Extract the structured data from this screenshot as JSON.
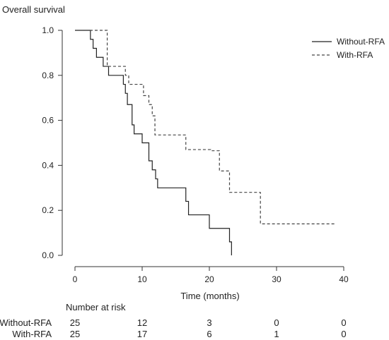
{
  "chart_data": {
    "type": "line",
    "subtype": "kaplan-meier",
    "title": "Overall survival",
    "xlabel": "Time (months)",
    "ylabel": "",
    "xlim": [
      0,
      40
    ],
    "ylim": [
      0,
      1
    ],
    "x_ticks": [
      0,
      10,
      20,
      30,
      40
    ],
    "y_ticks": [
      0.0,
      0.2,
      0.4,
      0.6,
      0.8,
      1.0
    ],
    "x_tick_labels": [
      "0",
      "10",
      "20",
      "30",
      "40"
    ],
    "y_tick_labels": [
      "0.0",
      "0.2",
      "0.4",
      "0.6",
      "0.8",
      "1.0"
    ],
    "grid": false,
    "legend_position": "top-right",
    "series": [
      {
        "name": "Without-RFA",
        "line_style": "solid",
        "color": "#222222",
        "steps": [
          [
            0,
            1.0
          ],
          [
            2.3,
            0.96
          ],
          [
            2.7,
            0.92
          ],
          [
            3.2,
            0.88
          ],
          [
            4.2,
            0.84
          ],
          [
            5.0,
            0.8
          ],
          [
            7.2,
            0.76
          ],
          [
            7.5,
            0.72
          ],
          [
            7.8,
            0.67
          ],
          [
            8.5,
            0.58
          ],
          [
            8.8,
            0.54
          ],
          [
            10.0,
            0.5
          ],
          [
            11.0,
            0.42
          ],
          [
            11.5,
            0.38
          ],
          [
            12.0,
            0.34
          ],
          [
            12.3,
            0.3
          ],
          [
            16.5,
            0.24
          ],
          [
            16.9,
            0.18
          ],
          [
            20.0,
            0.12
          ],
          [
            23.0,
            0.06
          ],
          [
            23.3,
            0.0
          ]
        ],
        "end_x": 23.3
      },
      {
        "name": "With-RFA",
        "line_style": "dashed",
        "color": "#444444",
        "steps": [
          [
            0,
            1.0
          ],
          [
            4.8,
            0.84
          ],
          [
            7.5,
            0.8
          ],
          [
            8.0,
            0.76
          ],
          [
            10.2,
            0.71
          ],
          [
            11.0,
            0.67
          ],
          [
            11.5,
            0.62
          ],
          [
            11.9,
            0.535
          ],
          [
            16.5,
            0.47
          ],
          [
            20.2,
            0.465
          ],
          [
            21.5,
            0.375
          ],
          [
            23.0,
            0.28
          ],
          [
            27.6,
            0.14
          ]
        ],
        "end_x": 38.8
      }
    ],
    "risk_table": {
      "title": "Number at risk",
      "times": [
        0,
        10,
        20,
        30,
        40
      ],
      "rows": [
        {
          "name": "Without-RFA",
          "values": [
            "25",
            "12",
            "3",
            "0",
            "0"
          ]
        },
        {
          "name": "With-RFA",
          "values": [
            "25",
            "17",
            "6",
            "1",
            "0"
          ]
        }
      ]
    }
  }
}
